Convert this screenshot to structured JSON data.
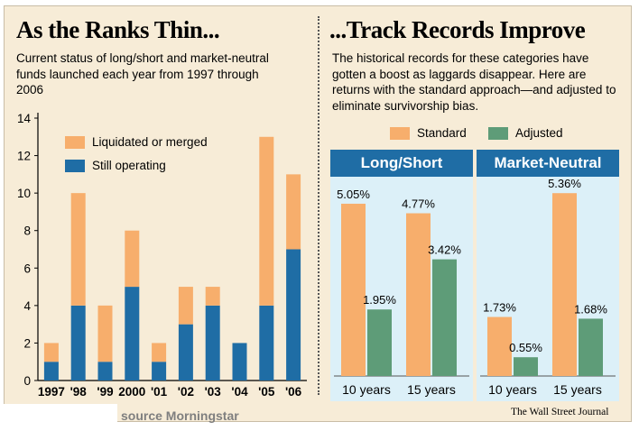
{
  "left": {
    "title": "As the Ranks Thin...",
    "subtitle": "Current status of long/short and market-neutral funds launched each year from 1997 through 2006",
    "legend": [
      {
        "label": "Liquidated or merged",
        "color": "#f7ae6c"
      },
      {
        "label": "Still operating",
        "color": "#1f6da5"
      }
    ]
  },
  "right": {
    "title": "...Track Records Improve",
    "subtitle": "The historical records for these categories have gotten a boost as laggards disappear. Here are returns with the standard approach—and adjusted to eliminate survivorship bias.",
    "legend": [
      {
        "label": "Standard",
        "color": "#f7ae6c"
      },
      {
        "label": "Adjusted",
        "color": "#5e9c78"
      }
    ],
    "panels": [
      {
        "title": "Long/Short"
      },
      {
        "title": "Market-Neutral"
      }
    ]
  },
  "footer": {
    "source": "source Morningstar",
    "publisher": "The Wall Street Journal"
  },
  "chart_data": [
    {
      "type": "bar",
      "stacked": true,
      "categories": [
        "1997",
        "'98",
        "'99",
        "2000",
        "'01",
        "'02",
        "'03",
        "'04",
        "'05",
        "'06"
      ],
      "series": [
        {
          "name": "Still operating",
          "color": "#1f6da5",
          "values": [
            1,
            4,
            1,
            5,
            1,
            3,
            4,
            2,
            4,
            7
          ]
        },
        {
          "name": "Liquidated or merged",
          "color": "#f7ae6c",
          "values": [
            1,
            6,
            3,
            3,
            1,
            2,
            1,
            0,
            9,
            4
          ]
        }
      ],
      "title": "As the Ranks Thin...",
      "ylim": [
        0,
        14
      ],
      "yticks": [
        0,
        2,
        4,
        6,
        8,
        10,
        12,
        14
      ],
      "grid": false,
      "legend": "top-left"
    },
    {
      "type": "bar",
      "panel": "Long/Short",
      "categories": [
        "10 years",
        "15 years"
      ],
      "series": [
        {
          "name": "Standard",
          "color": "#f7ae6c",
          "values": [
            5.05,
            4.77
          ],
          "labels": [
            "5.05%",
            "4.77%"
          ]
        },
        {
          "name": "Adjusted",
          "color": "#5e9c78",
          "values": [
            1.95,
            3.42
          ],
          "labels": [
            "1.95%",
            "3.42%"
          ]
        }
      ],
      "ylim": [
        0,
        6
      ],
      "legend": "top"
    },
    {
      "type": "bar",
      "panel": "Market-Neutral",
      "categories": [
        "10 years",
        "15 years"
      ],
      "series": [
        {
          "name": "Standard",
          "color": "#f7ae6c",
          "values": [
            1.73,
            5.36
          ],
          "labels": [
            "1.73%",
            "5.36%"
          ]
        },
        {
          "name": "Adjusted",
          "color": "#5e9c78",
          "values": [
            0.55,
            1.68
          ],
          "labels": [
            "0.55%",
            "1.68%"
          ]
        }
      ],
      "ylim": [
        0,
        6
      ],
      "legend": "top"
    }
  ]
}
